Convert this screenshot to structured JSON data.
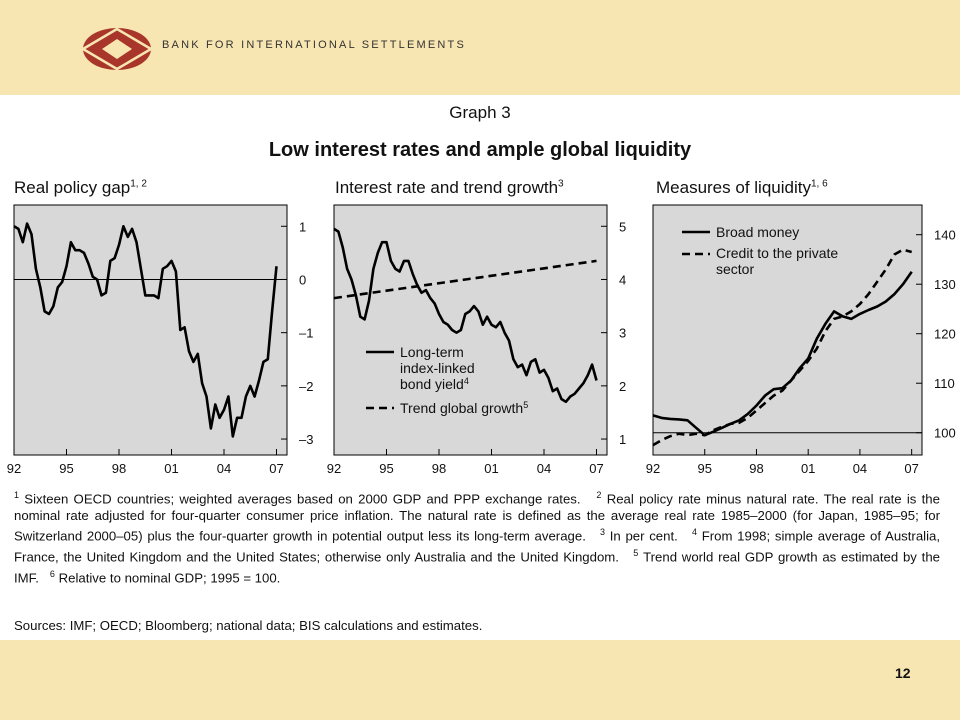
{
  "header": {
    "organization": "BANK FOR INTERNATIONAL SETTLEMENTS"
  },
  "graph": {
    "number": "Graph 3",
    "title": "Low interest rates and ample global liquidity"
  },
  "panels": [
    {
      "title": "Real policy gap",
      "notes": "1, 2"
    },
    {
      "title": "Interest rate and trend growth",
      "notes": "3"
    },
    {
      "title": "Measures of liquidity",
      "notes": "1, 6"
    }
  ],
  "chart_data": [
    {
      "type": "line",
      "title": "Real policy gap",
      "xticks": [
        "92",
        "95",
        "98",
        "01",
        "04",
        "07"
      ],
      "xlim": [
        1992,
        2007.6
      ],
      "ylim": [
        -3.3,
        1.4
      ],
      "yticks": [
        1,
        0,
        -1,
        -2,
        -3
      ],
      "ytick_labels": [
        "1",
        "0",
        "–1",
        "–2",
        "–3"
      ],
      "y_axis_side": "right",
      "series": [
        {
          "name": "",
          "style": "solid",
          "x": [
            1992,
            1992.25,
            1992.5,
            1992.75,
            1993,
            1993.25,
            1993.5,
            1993.75,
            1994,
            1994.25,
            1994.5,
            1994.75,
            1995,
            1995.25,
            1995.5,
            1995.75,
            1996,
            1996.25,
            1996.5,
            1996.75,
            1997,
            1997.25,
            1997.5,
            1997.75,
            1998,
            1998.25,
            1998.5,
            1998.75,
            1999,
            1999.25,
            1999.5,
            1999.75,
            2000,
            2000.25,
            2000.5,
            2000.75,
            2001,
            2001.25,
            2001.5,
            2001.75,
            2002,
            2002.25,
            2002.5,
            2002.75,
            2003,
            2003.25,
            2003.5,
            2003.75,
            2004,
            2004.25,
            2004.5,
            2004.75,
            2005,
            2005.25,
            2005.5,
            2005.75,
            2006,
            2006.25,
            2006.5,
            2006.75,
            2007
          ],
          "y": [
            1.0,
            0.95,
            0.7,
            1.05,
            0.85,
            0.2,
            -0.15,
            -0.6,
            -0.65,
            -0.5,
            -0.15,
            -0.05,
            0.25,
            0.7,
            0.55,
            0.55,
            0.5,
            0.3,
            0.05,
            0.0,
            -0.3,
            -0.25,
            0.35,
            0.4,
            0.65,
            1.0,
            0.8,
            0.95,
            0.7,
            0.2,
            -0.3,
            -0.3,
            -0.3,
            -0.35,
            0.2,
            0.25,
            0.35,
            0.15,
            -0.95,
            -0.9,
            -1.35,
            -1.55,
            -1.4,
            -1.95,
            -2.2,
            -2.8,
            -2.35,
            -2.6,
            -2.45,
            -2.2,
            -2.95,
            -2.6,
            -2.6,
            -2.2,
            -2.0,
            -2.2,
            -1.9,
            -1.55,
            -1.5,
            -0.6,
            0.25
          ]
        }
      ]
    },
    {
      "type": "line",
      "title": "Interest rate and trend growth",
      "xticks": [
        "92",
        "95",
        "98",
        "01",
        "04",
        "07"
      ],
      "xlim": [
        1992,
        2007.6
      ],
      "ylim": [
        0.7,
        5.4
      ],
      "yticks": [
        5,
        4,
        3,
        2,
        1
      ],
      "ytick_labels": [
        "5",
        "4",
        "3",
        "2",
        "1"
      ],
      "y_axis_side": "right",
      "legend": {
        "placement": "lower-left"
      },
      "series": [
        {
          "name": "Long-term index-linked bond yield",
          "note": "4",
          "style": "solid",
          "x": [
            1992,
            1992.25,
            1992.5,
            1992.75,
            1993,
            1993.25,
            1993.5,
            1993.75,
            1994,
            1994.25,
            1994.5,
            1994.75,
            1995,
            1995.25,
            1995.5,
            1995.75,
            1996,
            1996.25,
            1996.5,
            1996.75,
            1997,
            1997.25,
            1997.5,
            1997.75,
            1998,
            1998.25,
            1998.5,
            1998.75,
            1999,
            1999.25,
            1999.5,
            1999.75,
            2000,
            2000.25,
            2000.5,
            2000.75,
            2001,
            2001.25,
            2001.5,
            2001.75,
            2002,
            2002.25,
            2002.5,
            2002.75,
            2003,
            2003.25,
            2003.5,
            2003.75,
            2004,
            2004.25,
            2004.5,
            2004.75,
            2005,
            2005.25,
            2005.5,
            2005.75,
            2006,
            2006.25,
            2006.5,
            2006.75,
            2007
          ],
          "y": [
            4.95,
            4.9,
            4.6,
            4.2,
            4.0,
            3.7,
            3.3,
            3.25,
            3.6,
            4.2,
            4.5,
            4.7,
            4.7,
            4.35,
            4.2,
            4.15,
            4.35,
            4.35,
            4.1,
            3.9,
            3.75,
            3.8,
            3.65,
            3.55,
            3.35,
            3.2,
            3.15,
            3.05,
            3.0,
            3.05,
            3.35,
            3.4,
            3.5,
            3.4,
            3.15,
            3.3,
            3.15,
            3.1,
            3.2,
            3.0,
            2.85,
            2.5,
            2.35,
            2.4,
            2.2,
            2.45,
            2.5,
            2.25,
            2.3,
            2.15,
            1.9,
            1.95,
            1.75,
            1.7,
            1.8,
            1.85,
            1.95,
            2.05,
            2.2,
            2.4,
            2.1
          ]
        },
        {
          "name": "Trend global growth",
          "note": "5",
          "style": "dashed",
          "x": [
            1992,
            2007
          ],
          "y": [
            3.65,
            4.35
          ]
        }
      ]
    },
    {
      "type": "line",
      "title": "Measures of liquidity",
      "xticks": [
        "92",
        "95",
        "98",
        "01",
        "04",
        "07"
      ],
      "xlim": [
        1992,
        2007.6
      ],
      "ylim": [
        95.5,
        146
      ],
      "yticks": [
        140,
        130,
        120,
        110,
        100
      ],
      "ytick_labels": [
        "140",
        "130",
        "120",
        "110",
        "100"
      ],
      "y_axis_side": "right",
      "legend": {
        "placement": "top-left"
      },
      "series": [
        {
          "name": "Broad money",
          "style": "solid",
          "x": [
            1992,
            1992.5,
            1993,
            1993.5,
            1994,
            1994.5,
            1995,
            1995.5,
            1996,
            1996.5,
            1997,
            1997.5,
            1998,
            1998.5,
            1999,
            1999.5,
            2000,
            2000.5,
            2001,
            2001.5,
            2002,
            2002.5,
            2003,
            2003.5,
            2004,
            2004.5,
            2005,
            2005.5,
            2006,
            2006.5,
            2007
          ],
          "y": [
            103.5,
            103.0,
            102.8,
            102.7,
            102.5,
            101.0,
            99.5,
            100.2,
            101.0,
            101.8,
            102.5,
            103.8,
            105.5,
            107.5,
            108.8,
            109.0,
            110.5,
            113.0,
            115.0,
            119.0,
            122.0,
            124.5,
            123.5,
            123.0,
            124.0,
            124.8,
            125.5,
            126.5,
            128.0,
            130.0,
            132.5
          ]
        },
        {
          "name": "Credit to the private sector",
          "style": "dashed",
          "x": [
            1992,
            1992.5,
            1993,
            1993.5,
            1994,
            1994.5,
            1995,
            1995.5,
            1996,
            1996.5,
            1997,
            1997.5,
            1998,
            1998.5,
            1999,
            1999.5,
            2000,
            2000.5,
            2001,
            2001.5,
            2002,
            2002.5,
            2003,
            2003.5,
            2004,
            2004.5,
            2005,
            2005.5,
            2006,
            2006.5,
            2007
          ],
          "y": [
            97.5,
            98.5,
            99.3,
            99.8,
            99.5,
            99.8,
            99.5,
            100.5,
            101.2,
            101.8,
            102.0,
            103.0,
            104.5,
            106.0,
            107.5,
            108.5,
            110.5,
            112.5,
            114.5,
            117.0,
            120.5,
            123.0,
            123.5,
            124.5,
            126.0,
            128.0,
            130.5,
            133.0,
            136.0,
            137.0,
            136.5
          ]
        }
      ]
    }
  ],
  "footnotes": [
    {
      "mark": "1",
      "text": "Sixteen OECD countries; weighted averages based on 2000 GDP and PPP exchange rates."
    },
    {
      "mark": "2",
      "text": "Real policy rate minus natural rate. The real rate is the nominal rate adjusted for four-quarter consumer price inflation. The natural rate is defined as the average real rate 1985–2000 (for Japan, 1985–95; for Switzerland 2000–05) plus the four-quarter growth in potential output less its long-term average."
    },
    {
      "mark": "3",
      "text": "In per cent."
    },
    {
      "mark": "4",
      "text": "From 1998; simple average of Australia, France, the United Kingdom and the United States; otherwise only Australia and the United Kingdom."
    },
    {
      "mark": "5",
      "text": "Trend world real GDP growth as estimated by the IMF."
    },
    {
      "mark": "6",
      "text": "Relative to nominal GDP; 1995 = 100."
    }
  ],
  "sources": "Sources: IMF; OECD; Bloomberg; national data; BIS calculations and estimates.",
  "page_number": "12",
  "colors": {
    "background": "#f8e6b2",
    "plot_area": "#d8d8d8",
    "logo": "#a8362a",
    "line": "#000000"
  }
}
